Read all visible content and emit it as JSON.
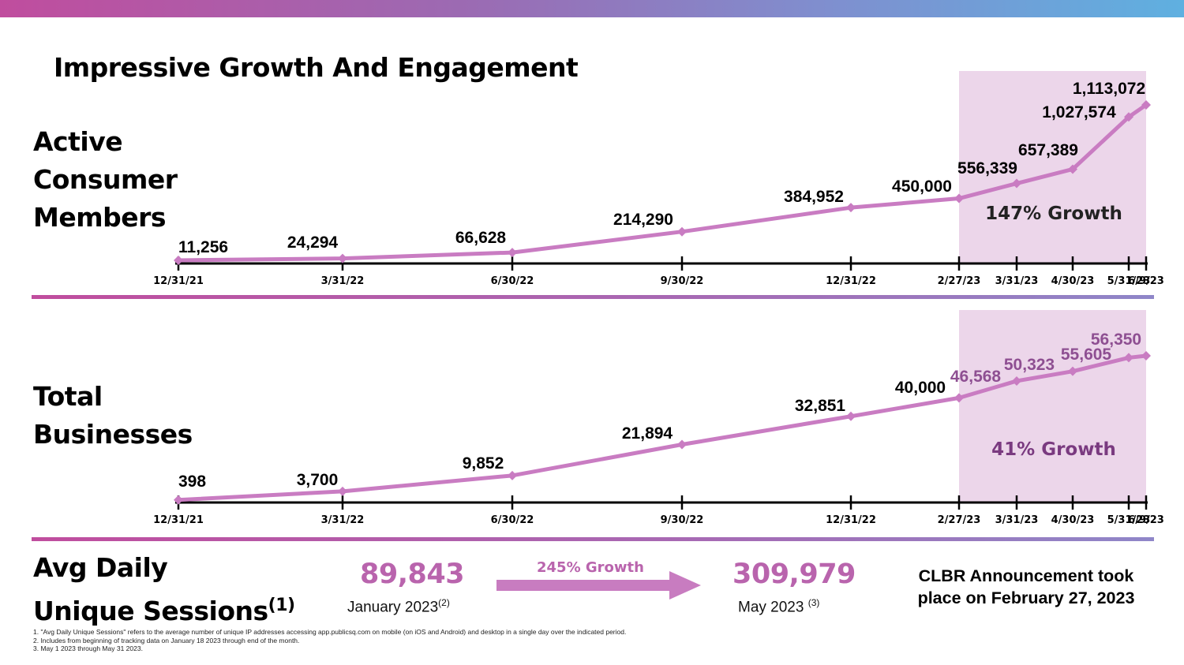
{
  "title": "Impressive Growth And Engagement",
  "labels": {
    "active": [
      "Active",
      "Consumer",
      "Members"
    ],
    "businesses": [
      "Total",
      "Businesses"
    ],
    "sessions_l1": "Avg Daily",
    "sessions_l2": "Unique Sessions",
    "sessions_sup": "(1)"
  },
  "chart_data": [
    {
      "type": "line",
      "name": "Active Consumer Members",
      "categories": [
        "12/31/21",
        "3/31/22",
        "6/30/22",
        "9/30/22",
        "12/31/22",
        "2/27/23",
        "3/31/23",
        "4/30/23",
        "5/31/23",
        "6/9/23"
      ],
      "values": [
        11256,
        24294,
        66628,
        214290,
        384952,
        450000,
        556339,
        657389,
        1027574,
        1113072
      ],
      "value_labels": [
        "11,256",
        "24,294",
        "66,628",
        "214,290",
        "384,952",
        "450,000",
        "556,339",
        "657,389",
        "1,027,574",
        "1,113,072"
      ],
      "highlight_from": "2/27/23",
      "highlight_to": "6/9/23",
      "annotation": "147% Growth"
    },
    {
      "type": "line",
      "name": "Total Businesses",
      "categories": [
        "12/31/21",
        "3/31/22",
        "6/30/22",
        "9/30/22",
        "12/31/22",
        "2/27/23",
        "3/31/23",
        "4/30/23",
        "5/31/23",
        "6/9/23"
      ],
      "values": [
        398,
        3700,
        9852,
        21894,
        32851,
        40000,
        46568,
        50323,
        55605,
        56350
      ],
      "value_labels": [
        "398",
        "3,700",
        "9,852",
        "21,894",
        "32,851",
        "40,000",
        "46,568",
        "50,323",
        "55,605",
        "56,350"
      ],
      "highlight_from": "2/27/23",
      "highlight_to": "6/9/23",
      "annotation": "41% Growth"
    }
  ],
  "sessions": {
    "jan_value": "89,843",
    "jan_label": "January 2023",
    "jan_sup": "(2)",
    "growth": "245% Growth",
    "may_value": "309,979",
    "may_label": "May 2023",
    "may_sup": "(3)"
  },
  "announcement": "CLBR Announcement took place on February 27, 2023",
  "footnotes": [
    "1. \"Avg Daily Unique Sessions\" refers to the average number of unique IP addresses accessing app.publicsq.com on mobile (on iOS and Android) and desktop in a single day over the indicated period.",
    "2. Includes from beginning of tracking data on January 18 2023 through end of the month.",
    "3. May 1 2023 through May 31 2023."
  ],
  "colors": {
    "line": "#c97cc2",
    "highlight": "#ecd6ea",
    "accent": "#b964ad"
  }
}
